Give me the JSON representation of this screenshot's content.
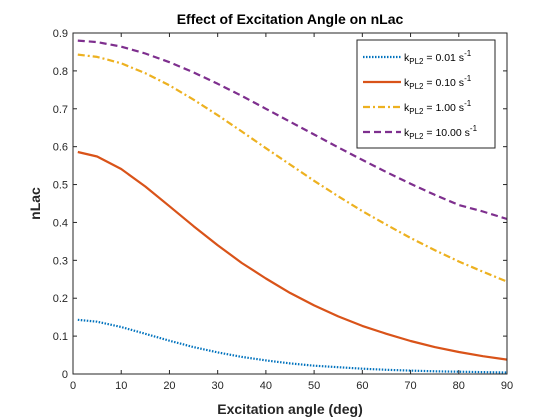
{
  "chart_data": {
    "type": "line",
    "title": "Effect of Excitation Angle on nLac",
    "xlabel": "Excitation angle (deg)",
    "ylabel": "nLac",
    "xlim": [
      0,
      90
    ],
    "ylim": [
      0,
      0.9
    ],
    "xticks": [
      "0",
      "10",
      "20",
      "30",
      "40",
      "50",
      "60",
      "70",
      "80",
      "90"
    ],
    "yticks": [
      "0",
      "0.1",
      "0.2",
      "0.3",
      "0.4",
      "0.5",
      "0.6",
      "0.7",
      "0.8",
      "0.9"
    ],
    "grid": false,
    "legend_position": "top-right",
    "x": [
      1,
      5,
      10,
      15,
      20,
      25,
      30,
      35,
      40,
      45,
      50,
      55,
      60,
      65,
      70,
      75,
      80,
      85,
      90
    ],
    "series": [
      {
        "name_prefix": "k",
        "name_sub": "PL2",
        "name_mid": " = 0.01 s",
        "name_sup": "-1",
        "color": "#0072BD",
        "style": "dotted",
        "values": [
          0.143,
          0.138,
          0.124,
          0.106,
          0.088,
          0.071,
          0.057,
          0.045,
          0.036,
          0.028,
          0.022,
          0.018,
          0.014,
          0.011,
          0.009,
          0.007,
          0.006,
          0.005,
          0.004
        ]
      },
      {
        "name_prefix": "k",
        "name_sub": "PL2",
        "name_mid": " = 0.10 s",
        "name_sup": "-1",
        "color": "#D95319",
        "style": "solid",
        "values": [
          0.586,
          0.574,
          0.541,
          0.495,
          0.443,
          0.39,
          0.34,
          0.293,
          0.252,
          0.214,
          0.181,
          0.152,
          0.127,
          0.106,
          0.087,
          0.071,
          0.058,
          0.047,
          0.038
        ]
      },
      {
        "name_prefix": "k",
        "name_sub": "PL2",
        "name_mid": " = 1.00 s",
        "name_sup": "-1",
        "color": "#EDB120",
        "style": "dashdot",
        "values": [
          0.843,
          0.837,
          0.82,
          0.794,
          0.762,
          0.724,
          0.683,
          0.64,
          0.596,
          0.553,
          0.51,
          0.469,
          0.43,
          0.394,
          0.359,
          0.327,
          0.297,
          0.27,
          0.244
        ]
      },
      {
        "name_prefix": "k",
        "name_sub": "PL2",
        "name_mid": " = 10.00 s",
        "name_sup": "-1",
        "color": "#7E2F8E",
        "style": "dashed",
        "values": [
          0.88,
          0.876,
          0.864,
          0.846,
          0.823,
          0.796,
          0.766,
          0.734,
          0.7,
          0.666,
          0.632,
          0.598,
          0.565,
          0.533,
          0.502,
          0.473,
          0.446,
          0.429,
          0.409
        ]
      }
    ]
  }
}
